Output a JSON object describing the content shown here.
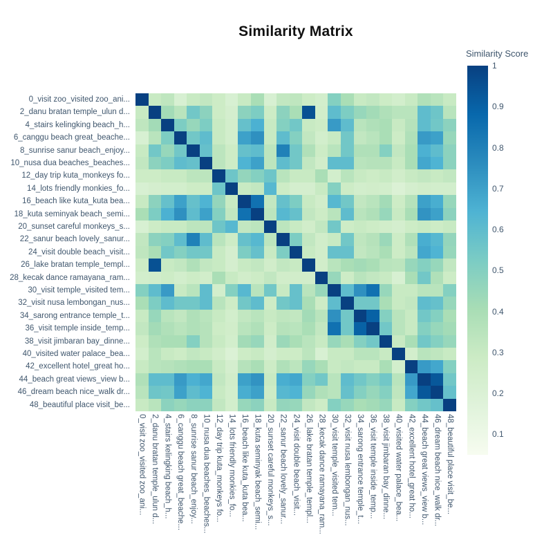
{
  "title": "Similarity Matrix",
  "colorbar": {
    "title": "Similarity Score",
    "ticks": [
      {
        "label": "1",
        "value": 1.0
      },
      {
        "label": "0.9",
        "value": 0.9
      },
      {
        "label": "0.8",
        "value": 0.8
      },
      {
        "label": "0.7",
        "value": 0.7
      },
      {
        "label": "0.6",
        "value": 0.6
      },
      {
        "label": "0.5",
        "value": 0.5
      },
      {
        "label": "0.4",
        "value": 0.4
      },
      {
        "label": "0.3",
        "value": 0.3
      },
      {
        "label": "0.2",
        "value": 0.2
      },
      {
        "label": "0.1",
        "value": 0.1
      }
    ]
  },
  "chart_data": {
    "type": "heatmap",
    "title": "Similarity Matrix",
    "colorbar_title": "Similarity Score",
    "zmin": 0.05,
    "zmax": 1.0,
    "grid": false,
    "legend_position": "right-colorbar",
    "colorscale": [
      [
        0.0,
        "#f7fcf0"
      ],
      [
        0.125,
        "#e0f3db"
      ],
      [
        0.25,
        "#ccebc5"
      ],
      [
        0.375,
        "#a8ddb5"
      ],
      [
        0.5,
        "#7bccc4"
      ],
      [
        0.625,
        "#4eb3d3"
      ],
      [
        0.75,
        "#2b8cbe"
      ],
      [
        0.875,
        "#0868ac"
      ],
      [
        1.0,
        "#084081"
      ]
    ],
    "labels": [
      "0_visit zoo_visited zoo_ani...",
      "2_danu bratan temple_ulun d...",
      "4_stairs kelingking beach_h...",
      "6_canggu beach great_beache...",
      "8_sunrise sanur beach_enjoy...",
      "10_nusa dua beaches_beaches...",
      "12_day trip kuta_monkeys fo...",
      "14_lots friendly monkies_fo...",
      "16_beach like kuta_kuta bea...",
      "18_kuta seminyak beach_semi...",
      "20_sunset careful monkeys_s...",
      "22_sanur beach lovely_sanur...",
      "24_visit double beach_visit...",
      "26_lake bratan temple_templ...",
      "28_kecak dance ramayana_ram...",
      "30_visit temple_visited tem...",
      "32_visit nusa lembongan_nus...",
      "34_sarong entrance temple_t...",
      "36_visit temple inside_temp...",
      "38_visit jimbaran bay_dinne...",
      "40_visited water palace_bea...",
      "42_excellent hotel_great ho...",
      "44_beach great views_view b...",
      "46_dream beach nice_walk dr...",
      "48_beautiful place visit_be..."
    ],
    "matrix": [
      [
        1.0,
        0.3,
        0.33,
        0.22,
        0.3,
        0.32,
        0.28,
        0.22,
        0.3,
        0.4,
        0.22,
        0.32,
        0.33,
        0.28,
        0.25,
        0.5,
        0.4,
        0.3,
        0.32,
        0.28,
        0.25,
        0.3,
        0.38,
        0.35,
        0.3
      ],
      [
        0.3,
        1.0,
        0.42,
        0.35,
        0.55,
        0.48,
        0.28,
        0.24,
        0.48,
        0.52,
        0.28,
        0.48,
        0.4,
        0.95,
        0.26,
        0.6,
        0.52,
        0.45,
        0.42,
        0.38,
        0.35,
        0.35,
        0.6,
        0.56,
        0.35
      ],
      [
        0.33,
        0.42,
        1.0,
        0.52,
        0.45,
        0.52,
        0.3,
        0.25,
        0.58,
        0.65,
        0.3,
        0.5,
        0.55,
        0.3,
        0.28,
        0.72,
        0.6,
        0.35,
        0.38,
        0.4,
        0.3,
        0.36,
        0.6,
        0.55,
        0.48
      ],
      [
        0.22,
        0.35,
        0.52,
        1.0,
        0.55,
        0.6,
        0.3,
        0.25,
        0.7,
        0.75,
        0.3,
        0.6,
        0.5,
        0.32,
        0.25,
        0.3,
        0.55,
        0.32,
        0.35,
        0.4,
        0.28,
        0.38,
        0.72,
        0.7,
        0.45
      ],
      [
        0.3,
        0.55,
        0.45,
        0.55,
        1.0,
        0.58,
        0.34,
        0.28,
        0.58,
        0.6,
        0.34,
        0.8,
        0.55,
        0.38,
        0.28,
        0.35,
        0.55,
        0.38,
        0.38,
        0.5,
        0.32,
        0.4,
        0.65,
        0.6,
        0.48
      ],
      [
        0.32,
        0.48,
        0.52,
        0.6,
        0.58,
        1.0,
        0.34,
        0.28,
        0.64,
        0.7,
        0.34,
        0.6,
        0.55,
        0.32,
        0.26,
        0.6,
        0.6,
        0.35,
        0.36,
        0.36,
        0.3,
        0.4,
        0.68,
        0.64,
        0.48
      ],
      [
        0.28,
        0.28,
        0.3,
        0.3,
        0.34,
        0.34,
        1.0,
        0.56,
        0.46,
        0.5,
        0.56,
        0.35,
        0.3,
        0.3,
        0.4,
        0.25,
        0.35,
        0.3,
        0.28,
        0.3,
        0.26,
        0.3,
        0.32,
        0.3,
        0.32
      ],
      [
        0.22,
        0.24,
        0.25,
        0.25,
        0.28,
        0.28,
        0.56,
        1.0,
        0.3,
        0.32,
        0.62,
        0.28,
        0.24,
        0.24,
        0.3,
        0.5,
        0.28,
        0.25,
        0.26,
        0.25,
        0.2,
        0.24,
        0.26,
        0.25,
        0.25
      ],
      [
        0.3,
        0.48,
        0.58,
        0.7,
        0.58,
        0.64,
        0.46,
        0.3,
        1.0,
        0.85,
        0.32,
        0.58,
        0.52,
        0.3,
        0.26,
        0.62,
        0.55,
        0.32,
        0.35,
        0.42,
        0.28,
        0.36,
        0.7,
        0.66,
        0.45
      ],
      [
        0.4,
        0.52,
        0.65,
        0.75,
        0.6,
        0.7,
        0.5,
        0.32,
        0.85,
        1.0,
        0.34,
        0.62,
        0.58,
        0.32,
        0.28,
        0.35,
        0.6,
        0.35,
        0.38,
        0.45,
        0.3,
        0.4,
        0.74,
        0.7,
        0.48
      ],
      [
        0.22,
        0.28,
        0.3,
        0.3,
        0.34,
        0.34,
        0.56,
        0.62,
        0.32,
        0.34,
        1.0,
        0.34,
        0.3,
        0.26,
        0.32,
        0.55,
        0.28,
        0.3,
        0.28,
        0.26,
        0.24,
        0.28,
        0.3,
        0.28,
        0.3
      ],
      [
        0.32,
        0.48,
        0.5,
        0.6,
        0.8,
        0.6,
        0.35,
        0.28,
        0.58,
        0.62,
        0.34,
        1.0,
        0.52,
        0.32,
        0.26,
        0.3,
        0.55,
        0.33,
        0.36,
        0.44,
        0.28,
        0.38,
        0.66,
        0.62,
        0.46
      ],
      [
        0.33,
        0.4,
        0.55,
        0.5,
        0.55,
        0.55,
        0.3,
        0.24,
        0.52,
        0.58,
        0.3,
        0.52,
        1.0,
        0.3,
        0.26,
        0.58,
        0.58,
        0.32,
        0.35,
        0.4,
        0.28,
        0.34,
        0.68,
        0.64,
        0.45
      ],
      [
        0.28,
        0.95,
        0.3,
        0.32,
        0.38,
        0.32,
        0.3,
        0.24,
        0.3,
        0.32,
        0.26,
        0.32,
        0.3,
        1.0,
        0.26,
        0.35,
        0.4,
        0.42,
        0.4,
        0.35,
        0.34,
        0.45,
        0.5,
        0.45,
        0.32
      ],
      [
        0.25,
        0.26,
        0.28,
        0.25,
        0.28,
        0.26,
        0.4,
        0.3,
        0.26,
        0.28,
        0.32,
        0.26,
        0.26,
        0.26,
        1.0,
        0.45,
        0.28,
        0.35,
        0.32,
        0.3,
        0.22,
        0.4,
        0.55,
        0.38,
        0.28
      ],
      [
        0.5,
        0.6,
        0.72,
        0.3,
        0.35,
        0.6,
        0.25,
        0.5,
        0.62,
        0.35,
        0.55,
        0.3,
        0.58,
        0.35,
        0.45,
        1.0,
        0.6,
        0.75,
        0.85,
        0.45,
        0.3,
        0.3,
        0.35,
        0.35,
        0.5
      ],
      [
        0.4,
        0.52,
        0.6,
        0.55,
        0.55,
        0.6,
        0.35,
        0.28,
        0.55,
        0.6,
        0.28,
        0.55,
        0.58,
        0.4,
        0.28,
        0.6,
        1.0,
        0.55,
        0.55,
        0.4,
        0.3,
        0.32,
        0.6,
        0.58,
        0.45
      ],
      [
        0.3,
        0.45,
        0.35,
        0.32,
        0.38,
        0.35,
        0.3,
        0.25,
        0.32,
        0.35,
        0.3,
        0.33,
        0.32,
        0.42,
        0.35,
        0.75,
        0.55,
        1.0,
        0.9,
        0.5,
        0.35,
        0.3,
        0.55,
        0.5,
        0.4
      ],
      [
        0.32,
        0.42,
        0.38,
        0.35,
        0.38,
        0.36,
        0.28,
        0.26,
        0.35,
        0.38,
        0.28,
        0.36,
        0.35,
        0.4,
        0.32,
        0.85,
        0.55,
        0.9,
        1.0,
        0.55,
        0.35,
        0.3,
        0.5,
        0.45,
        0.42
      ],
      [
        0.28,
        0.38,
        0.4,
        0.4,
        0.5,
        0.36,
        0.3,
        0.25,
        0.42,
        0.45,
        0.26,
        0.44,
        0.4,
        0.35,
        0.3,
        0.45,
        0.4,
        0.5,
        0.55,
        1.0,
        0.3,
        0.4,
        0.55,
        0.5,
        0.45
      ],
      [
        0.25,
        0.35,
        0.3,
        0.28,
        0.32,
        0.3,
        0.26,
        0.2,
        0.28,
        0.3,
        0.24,
        0.28,
        0.28,
        0.34,
        0.22,
        0.3,
        0.3,
        0.35,
        0.35,
        0.3,
        1.0,
        0.25,
        0.35,
        0.33,
        0.3
      ],
      [
        0.3,
        0.35,
        0.36,
        0.38,
        0.4,
        0.4,
        0.3,
        0.24,
        0.36,
        0.4,
        0.28,
        0.38,
        0.34,
        0.45,
        0.4,
        0.3,
        0.32,
        0.3,
        0.3,
        0.4,
        0.25,
        1.0,
        0.72,
        0.68,
        0.5
      ],
      [
        0.38,
        0.6,
        0.6,
        0.72,
        0.65,
        0.68,
        0.32,
        0.26,
        0.7,
        0.74,
        0.3,
        0.66,
        0.68,
        0.5,
        0.55,
        0.35,
        0.6,
        0.55,
        0.5,
        0.55,
        0.35,
        0.72,
        1.0,
        0.93,
        0.55
      ],
      [
        0.35,
        0.56,
        0.55,
        0.7,
        0.6,
        0.64,
        0.3,
        0.25,
        0.66,
        0.7,
        0.28,
        0.62,
        0.64,
        0.45,
        0.38,
        0.35,
        0.58,
        0.5,
        0.45,
        0.5,
        0.33,
        0.68,
        0.93,
        1.0,
        0.58
      ],
      [
        0.3,
        0.35,
        0.48,
        0.45,
        0.48,
        0.48,
        0.32,
        0.25,
        0.45,
        0.48,
        0.3,
        0.46,
        0.45,
        0.32,
        0.28,
        0.5,
        0.45,
        0.4,
        0.42,
        0.45,
        0.3,
        0.5,
        0.55,
        0.58,
        1.0
      ]
    ]
  }
}
